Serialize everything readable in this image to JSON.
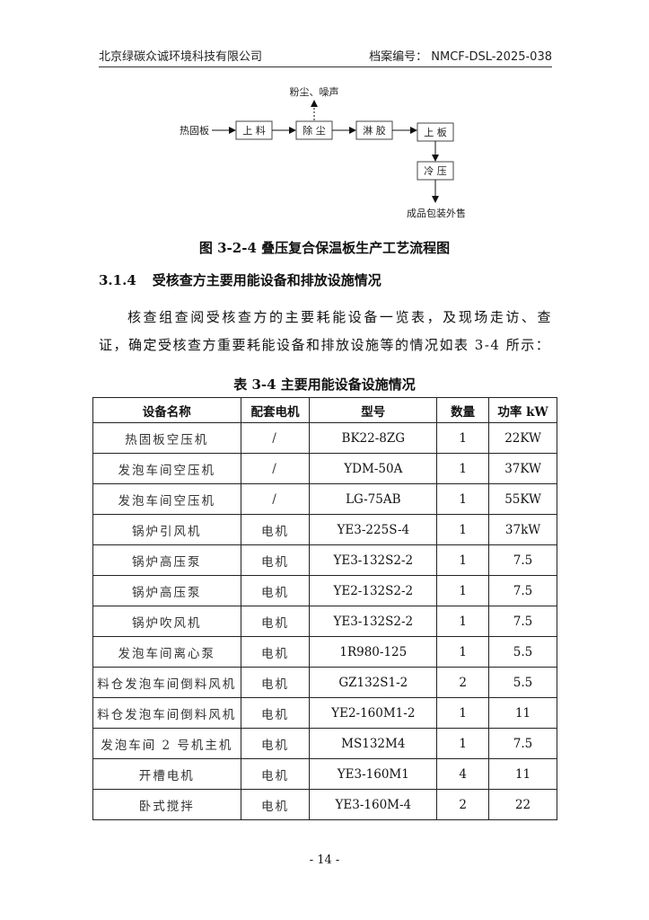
{
  "header": {
    "company": "北京绿碳众诚环境科技有限公司",
    "archive_no": "档案编号： NMCF-DSL-2025-038"
  },
  "flow": {
    "input": "热固板",
    "steps": [
      "上 料",
      "除 尘",
      "淋 胶",
      "上 板",
      "冷 压"
    ],
    "emission": "粉尘、噪声",
    "output": "成品包装外售"
  },
  "figure_caption": "图 3-2-4 叠压复合保温板生产工艺流程图",
  "section": {
    "number": "3.1.4",
    "title": "受核查方主要用能设备和排放设施情况"
  },
  "paragraph": "核查组查阅受核查方的主要耗能设备一览表，及现场走访、查证，确定受核查方重要耗能设备和排放设施等的情况如表 3-4 所示：",
  "table": {
    "caption": "表 3-4  主要用能设备设施情况",
    "headers": [
      "设备名称",
      "配套电机",
      "型号",
      "数量",
      "功率 kW"
    ],
    "rows": [
      [
        "热固板空压机",
        "/",
        "BK22-8ZG",
        "1",
        "22KW"
      ],
      [
        "发泡车间空压机",
        "/",
        "YDM-50A",
        "1",
        "37KW"
      ],
      [
        "发泡车间空压机",
        "/",
        "LG-75AB",
        "1",
        "55KW"
      ],
      [
        "锅炉引风机",
        "电机",
        "YE3-225S-4",
        "1",
        "37kW"
      ],
      [
        "锅炉高压泵",
        "电机",
        "YE3-132S2-2",
        "1",
        "7.5"
      ],
      [
        "锅炉高压泵",
        "电机",
        "YE2-132S2-2",
        "1",
        "7.5"
      ],
      [
        "锅炉吹风机",
        "电机",
        "YE3-132S2-2",
        "1",
        "7.5"
      ],
      [
        "发泡车间离心泵",
        "电机",
        "1R980-125",
        "1",
        "5.5"
      ],
      [
        "料仓发泡车间倒料风机",
        "电机",
        "GZ132S1-2",
        "2",
        "5.5"
      ],
      [
        "料仓发泡车间倒料风机",
        "电机",
        "YE2-160M1-2",
        "1",
        "11"
      ],
      [
        "发泡车间 2 号机主机",
        "电机",
        "MS132M4",
        "1",
        "7.5"
      ],
      [
        "开槽电机",
        "电机",
        "YE3-160M1",
        "4",
        "11"
      ],
      [
        "卧式搅拌",
        "电机",
        "YE3-160M-4",
        "2",
        "22"
      ]
    ]
  },
  "footer": {
    "page": "- 14 -"
  }
}
